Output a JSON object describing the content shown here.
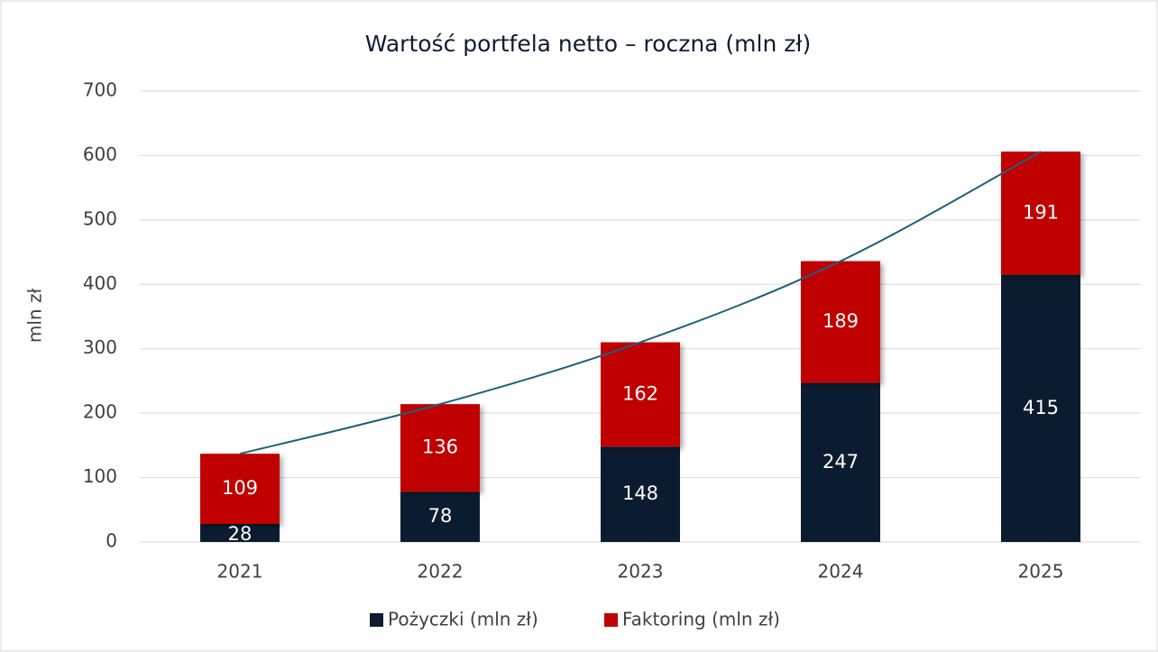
{
  "chart_data": {
    "type": "bar",
    "stacked": true,
    "title": "Wartość portfela netto – roczna (mln zł)",
    "y_label": "mln zł",
    "categories": [
      "2021",
      "2022",
      "2023",
      "2024",
      "2025"
    ],
    "series": [
      {
        "name": "Pożyczki (mln zł)",
        "color": "#0c1c30",
        "values": [
          28,
          78,
          148,
          247,
          415
        ]
      },
      {
        "name": "Faktoring (mln zł)",
        "color": "#c00000",
        "values": [
          109,
          136,
          162,
          189,
          191
        ]
      }
    ],
    "trendline": {
      "color": "#1f5f7a"
    },
    "ylim": [
      0,
      700
    ],
    "yticks": [
      0,
      100,
      200,
      300,
      400,
      500,
      600,
      700
    ],
    "grid": true,
    "legend": "bottom"
  }
}
